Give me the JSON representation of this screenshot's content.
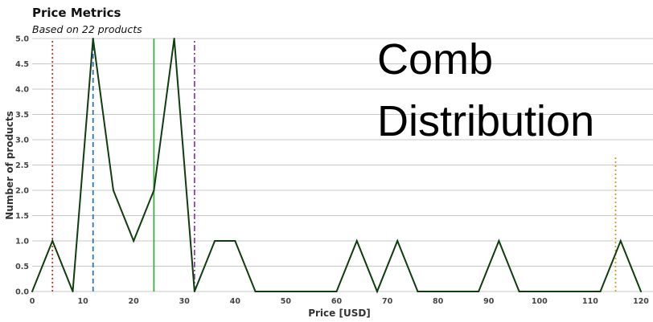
{
  "chart_data": {
    "type": "line",
    "title": "Price Metrics",
    "subtitle": "Based on 22 products",
    "annotation_lines": [
      "Comb",
      "Distribution"
    ],
    "xlabel": "Price [USD]",
    "ylabel": "Number of products",
    "xlim": [
      0,
      120
    ],
    "ylim": [
      0,
      5
    ],
    "x_ticks": [
      0,
      10,
      20,
      30,
      40,
      50,
      60,
      70,
      80,
      90,
      100,
      110,
      120
    ],
    "y_ticks": [
      0.0,
      0.5,
      1.0,
      1.5,
      2.0,
      2.5,
      3.0,
      3.5,
      4.0,
      4.5,
      5.0
    ],
    "grid": "horizontal",
    "line_color": "#0f3d0f",
    "x": [
      0,
      4,
      8,
      12,
      16,
      20,
      24,
      28,
      32,
      36,
      40,
      44,
      48,
      52,
      56,
      60,
      64,
      68,
      72,
      76,
      80,
      84,
      88,
      92,
      96,
      100,
      104,
      108,
      112,
      116,
      120
    ],
    "y": [
      0,
      1,
      0,
      5,
      2,
      1,
      2,
      5,
      0,
      1,
      1,
      0,
      0,
      0,
      0,
      0,
      1,
      0,
      1,
      0,
      0,
      0,
      0,
      1,
      0,
      0,
      0,
      0,
      0,
      1,
      0
    ],
    "reference_lines": [
      {
        "x": 4,
        "color": "#c0392b",
        "dash": "dotted",
        "y_top": 5
      },
      {
        "x": 12,
        "color": "#2e75b6",
        "dash": "dashed",
        "y_top": 5
      },
      {
        "x": 24,
        "color": "#3cb043",
        "dash": "solid",
        "y_top": 5
      },
      {
        "x": 32,
        "color": "#8e44ad",
        "dash": "dashdot",
        "y_top": 5
      },
      {
        "x": 115,
        "color": "#e69520",
        "dash": "dotted",
        "y_top": 2.7
      }
    ]
  }
}
